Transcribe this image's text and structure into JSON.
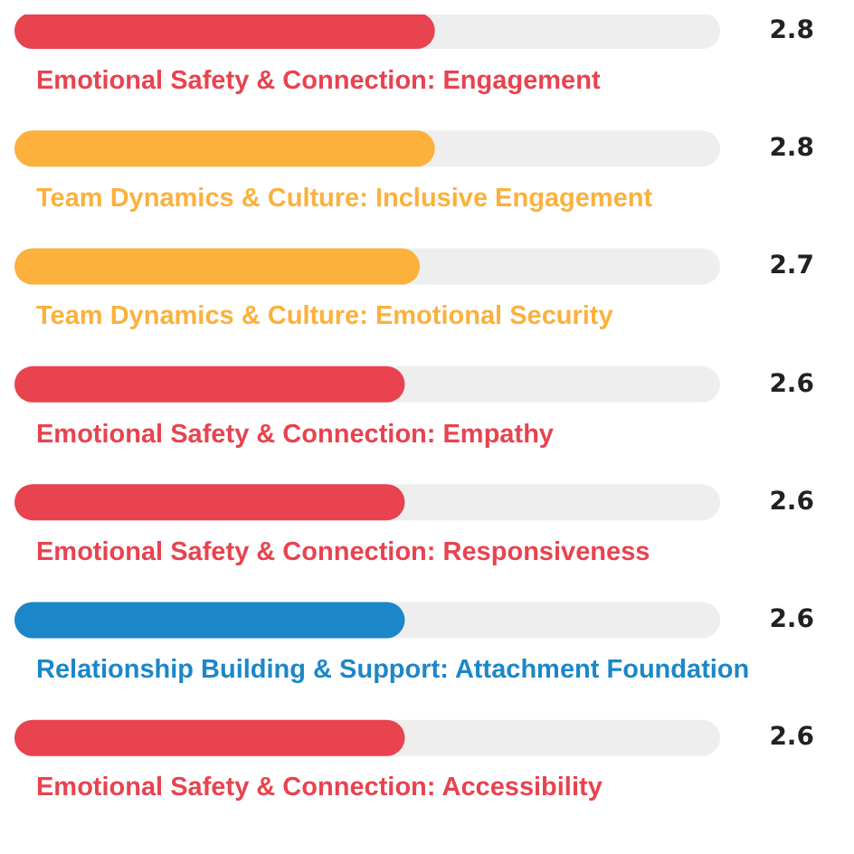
{
  "chart_data": {
    "type": "bar",
    "orientation": "horizontal",
    "categories": [
      "Emotional Safety & Connection: Engagement",
      "Team Dynamics & Culture: Inclusive Engagement",
      "Team Dynamics & Culture: Emotional Security",
      "Emotional Safety & Connection: Empathy",
      "Emotional Safety & Connection: Responsiveness",
      "Relationship Building & Support: Attachment Foundation",
      "Emotional Safety & Connection: Accessibility"
    ],
    "values": [
      2.8,
      2.8,
      2.7,
      2.6,
      2.6,
      2.6,
      2.6
    ],
    "colors": [
      "#e8434f",
      "#fbb13c",
      "#fbb13c",
      "#e8434f",
      "#e8434f",
      "#1b87c9",
      "#e8434f"
    ],
    "xlim": [
      0,
      4.7
    ],
    "tick_labels": "y",
    "data_labels": true
  }
}
